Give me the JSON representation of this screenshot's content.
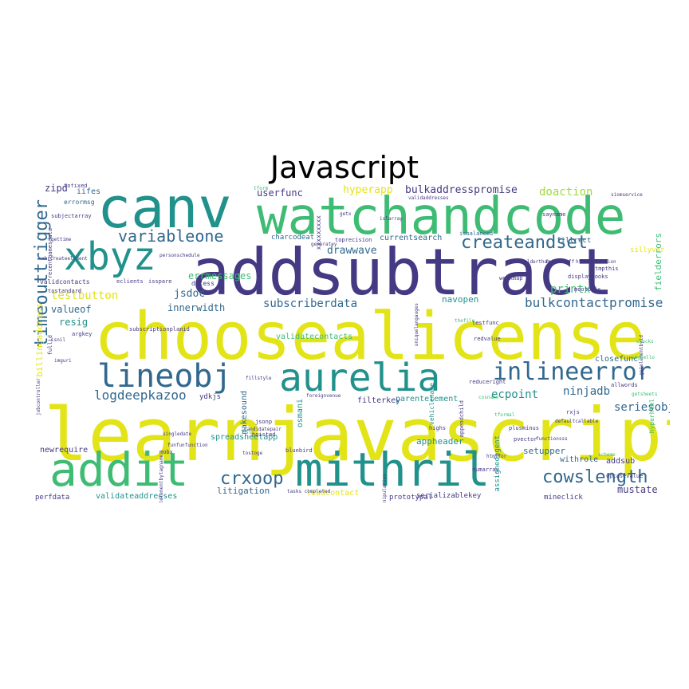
{
  "title": "Javascript",
  "palette": {
    "yellow": "#e2e418",
    "green": "#3ebc74",
    "teal": "#21918c",
    "blue": "#31688e",
    "indigo": "#443983",
    "purple": "#440154",
    "lime": "#9fda3a"
  },
  "words": [
    {
      "text": "learnjavascript",
      "size": 92,
      "color": "yellow"
    },
    {
      "text": "choosealicense",
      "size": 82,
      "color": "yellow"
    },
    {
      "text": "addsubtract",
      "size": 80,
      "color": "indigo"
    },
    {
      "text": "watchandcode",
      "size": 64,
      "color": "green"
    },
    {
      "text": "canv",
      "size": 70,
      "color": "teal"
    },
    {
      "text": "xbyz",
      "size": 48,
      "color": "teal"
    },
    {
      "text": "addit",
      "size": 58,
      "color": "green"
    },
    {
      "text": "mithril",
      "size": 58,
      "color": "teal"
    },
    {
      "text": "aurelia",
      "size": 48,
      "color": "teal"
    },
    {
      "text": "lineobj",
      "size": 40,
      "color": "blue"
    },
    {
      "text": "inlineerror",
      "size": 30,
      "color": "blue"
    },
    {
      "text": "timeouttrigger",
      "size": 22,
      "color": "blue"
    },
    {
      "text": "createandset",
      "size": 22,
      "color": "blue"
    },
    {
      "text": "cowslength",
      "size": 22,
      "color": "blue"
    },
    {
      "text": "crxoop",
      "size": 22,
      "color": "blue"
    },
    {
      "text": "variableone",
      "size": 20,
      "color": "blue"
    },
    {
      "text": "logdeepkazoo",
      "size": 16,
      "color": "blue"
    },
    {
      "text": "bulkcontactpromise",
      "size": 16,
      "color": "blue"
    },
    {
      "text": "subscriberdata",
      "size": 14,
      "color": "blue"
    },
    {
      "text": "ninjadb",
      "size": 14,
      "color": "blue"
    },
    {
      "text": "ecpoint",
      "size": 14,
      "color": "teal"
    },
    {
      "text": "seriesobj",
      "size": 14,
      "color": "blue"
    },
    {
      "text": "drawwave",
      "size": 13,
      "color": "blue"
    },
    {
      "text": "testbutton",
      "size": 14,
      "color": "yellow"
    },
    {
      "text": "printx",
      "size": 14,
      "color": "green"
    },
    {
      "text": "doaction",
      "size": 14,
      "color": "lime"
    },
    {
      "text": "hyperapp",
      "size": 13,
      "color": "yellow"
    },
    {
      "text": "bulkaddresspromise",
      "size": 13,
      "color": "indigo"
    },
    {
      "text": "userfunc",
      "size": 12,
      "color": "indigo"
    },
    {
      "text": "jsdoc",
      "size": 13,
      "color": "blue"
    },
    {
      "text": "innerwidth",
      "size": 12,
      "color": "blue"
    },
    {
      "text": "valueof",
      "size": 12,
      "color": "blue"
    },
    {
      "text": "errmessages",
      "size": 12,
      "color": "green"
    },
    {
      "text": "resig",
      "size": 12,
      "color": "teal"
    },
    {
      "text": "zipd",
      "size": 12,
      "color": "indigo"
    },
    {
      "text": "iifes",
      "size": 10,
      "color": "blue"
    },
    {
      "text": "currentsearch",
      "size": 10,
      "color": "blue"
    },
    {
      "text": "charcodeat",
      "size": 9,
      "color": "blue"
    },
    {
      "text": "fillrect",
      "size": 9,
      "color": "blue"
    },
    {
      "text": "sillyvar",
      "size": 9,
      "color": "yellow"
    },
    {
      "text": "navopen",
      "size": 11,
      "color": "teal"
    },
    {
      "text": "validatecontacts",
      "size": 10,
      "color": "green"
    },
    {
      "text": "closefunc",
      "size": 10,
      "color": "blue"
    },
    {
      "text": "appheader",
      "size": 11,
      "color": "teal"
    },
    {
      "text": "setupper",
      "size": 11,
      "color": "blue"
    },
    {
      "text": "withrole",
      "size": 10,
      "color": "blue"
    },
    {
      "text": "addsub",
      "size": 10,
      "color": "indigo"
    },
    {
      "text": "mustate",
      "size": 12,
      "color": "indigo"
    },
    {
      "text": "leadcontact",
      "size": 10,
      "color": "yellow"
    },
    {
      "text": "litigation",
      "size": 11,
      "color": "blue"
    },
    {
      "text": "spreadsheetapp",
      "size": 10,
      "color": "teal"
    },
    {
      "text": "validateaddresses",
      "size": 10,
      "color": "teal"
    },
    {
      "text": "perfdata",
      "size": 9,
      "color": "indigo"
    },
    {
      "text": "newrequire",
      "size": 10,
      "color": "indigo"
    },
    {
      "text": "serializablekey",
      "size": 9,
      "color": "indigo"
    },
    {
      "text": "prototypal",
      "size": 9,
      "color": "indigo"
    },
    {
      "text": "mineclick",
      "size": 9,
      "color": "indigo"
    },
    {
      "text": "makesound",
      "size": 10,
      "color": "blue"
    },
    {
      "text": "osmani",
      "size": 10,
      "color": "teal"
    },
    {
      "text": "parentelement",
      "size": 10,
      "color": "teal"
    },
    {
      "text": "filterkey",
      "size": 10,
      "color": "indigo"
    },
    {
      "text": "ydkjs",
      "size": 9,
      "color": "indigo"
    },
    {
      "text": "billingaddress",
      "size": 11,
      "color": "yellow"
    },
    {
      "text": "fielderrors",
      "size": 11,
      "color": "green"
    },
    {
      "text": "displaybooks",
      "size": 7,
      "color": "indigo"
    },
    {
      "text": "validcontacts",
      "size": 8,
      "color": "indigo"
    },
    {
      "text": "datess",
      "size": 8,
      "color": "indigo"
    },
    {
      "text": "subscriptionplanid",
      "size": 7,
      "color": "indigo"
    },
    {
      "text": "tostandard",
      "size": 7,
      "color": "indigo"
    },
    {
      "text": "argkey",
      "size": 7,
      "color": "indigo"
    },
    {
      "text": "testfunc",
      "size": 7,
      "color": "indigo"
    },
    {
      "text": "redvalue",
      "size": 7,
      "color": "indigo"
    },
    {
      "text": "isbalanced",
      "size": 7,
      "color": "blue"
    },
    {
      "text": "toprecision",
      "size": 7,
      "color": "indigo"
    },
    {
      "text": "mootools",
      "size": 7,
      "color": "indigo"
    },
    {
      "text": "tmpthis",
      "size": 7,
      "color": "indigo"
    },
    {
      "text": "weakmap",
      "size": 7,
      "color": "indigo"
    },
    {
      "text": "sayname",
      "size": 7,
      "color": "indigo"
    },
    {
      "text": "hyperhtml",
      "size": 8,
      "color": "green"
    },
    {
      "text": "upcasevalue",
      "size": 7,
      "color": "indigo"
    },
    {
      "text": "allwords",
      "size": 7,
      "color": "indigo"
    },
    {
      "text": "rxjs",
      "size": 7,
      "color": "indigo"
    },
    {
      "text": "pvector",
      "size": 7,
      "color": "indigo"
    },
    {
      "text": "plusminus",
      "size": 7,
      "color": "indigo"
    },
    {
      "text": "numarray",
      "size": 7,
      "color": "indigo"
    },
    {
      "text": "jsonp",
      "size": 7,
      "color": "indigo"
    },
    {
      "text": "hoisted",
      "size": 7,
      "color": "indigo"
    },
    {
      "text": "bluebird",
      "size": 7,
      "color": "indigo"
    },
    {
      "text": "mobx",
      "size": 7,
      "color": "indigo"
    },
    {
      "text": "singledate",
      "size": 6,
      "color": "indigo"
    },
    {
      "text": "reduceright",
      "size": 7,
      "color": "indigo"
    },
    {
      "text": "highs",
      "size": 7,
      "color": "indigo"
    },
    {
      "text": "eclients",
      "size": 7,
      "color": "indigo"
    },
    {
      "text": "isspare",
      "size": 7,
      "color": "indigo"
    },
    {
      "text": "assignedagent",
      "size": 9,
      "color": "teal"
    },
    {
      "text": "appendchild",
      "size": 7,
      "color": "indigo"
    },
    {
      "text": "vehiclename",
      "size": 8,
      "color": "teal"
    },
    {
      "text": "uniquelangauges",
      "size": 6,
      "color": "indigo"
    },
    {
      "text": "errormsg",
      "size": 8,
      "color": "blue"
    },
    {
      "text": "subjectarray",
      "size": 7,
      "color": "indigo"
    },
    {
      "text": "tofixed",
      "size": 7,
      "color": "indigo"
    },
    {
      "text": "gettime",
      "size": 6,
      "color": "indigo"
    },
    {
      "text": "personschedule",
      "size": 6,
      "color": "indigo"
    },
    {
      "text": "recentgamesdata",
      "size": 7,
      "color": "indigo"
    },
    {
      "text": "fullid",
      "size": 7,
      "color": "indigo"
    },
    {
      "text": "jobcontroller",
      "size": 6,
      "color": "indigo"
    },
    {
      "text": "imguri",
      "size": 6,
      "color": "indigo"
    },
    {
      "text": "isnil",
      "size": 6,
      "color": "indigo"
    },
    {
      "text": "fillstyle",
      "size": 6,
      "color": "indigo"
    },
    {
      "text": "candidatepair",
      "size": 6,
      "color": "indigo"
    },
    {
      "text": "funfunfunction",
      "size": 6,
      "color": "indigo"
    },
    {
      "text": "tasks completed",
      "size": 6,
      "color": "indigo"
    },
    {
      "text": "foreignvenue",
      "size": 6,
      "color": "indigo"
    },
    {
      "text": "htmlfor",
      "size": 6,
      "color": "indigo"
    },
    {
      "text": "defaultcallable",
      "size": 6,
      "color": "indigo"
    },
    {
      "text": "functionsss",
      "size": 6,
      "color": "indigo"
    },
    {
      "text": "isolderthan",
      "size": 6,
      "color": "indigo"
    },
    {
      "text": "fetchstuff",
      "size": 6,
      "color": "indigo"
    },
    {
      "text": "htmlcollection",
      "size": 6,
      "color": "indigo"
    },
    {
      "text": "getelementbyid",
      "size": 6,
      "color": "indigo"
    },
    {
      "text": "getelementbytagname",
      "size": 6,
      "color": "indigo"
    },
    {
      "text": "stringmanipulation",
      "size": 6,
      "color": "indigo"
    },
    {
      "text": "xxxxxxxxx",
      "size": 8,
      "color": "indigo"
    },
    {
      "text": "generatey",
      "size": 6,
      "color": "indigo"
    },
    {
      "text": "islarray",
      "size": 6,
      "color": "indigo"
    },
    {
      "text": "getx",
      "size": 6,
      "color": "indigo"
    },
    {
      "text": "validaddresses",
      "size": 6,
      "color": "indigo"
    },
    {
      "text": "xhrcreateelement",
      "size": 6,
      "color": "indigo"
    },
    {
      "text": "siomservice",
      "size": 6,
      "color": "indigo"
    },
    {
      "text": "crocks",
      "size": 6,
      "color": "green"
    },
    {
      "text": "sayhello",
      "size": 6,
      "color": "green"
    },
    {
      "text": "getsheets",
      "size": 6,
      "color": "green"
    },
    {
      "text": "scheme",
      "size": 6,
      "color": "green"
    },
    {
      "text": "cosname",
      "size": 6,
      "color": "green"
    },
    {
      "text": "tformal",
      "size": 6,
      "color": "green"
    },
    {
      "text": "tsl",
      "size": 8,
      "color": "green"
    },
    {
      "text": "tform",
      "size": 6,
      "color": "green"
    },
    {
      "text": "thefile",
      "size": 6,
      "color": "green"
    },
    {
      "text": "tostoge",
      "size": 6,
      "color": "indigo"
    }
  ]
}
